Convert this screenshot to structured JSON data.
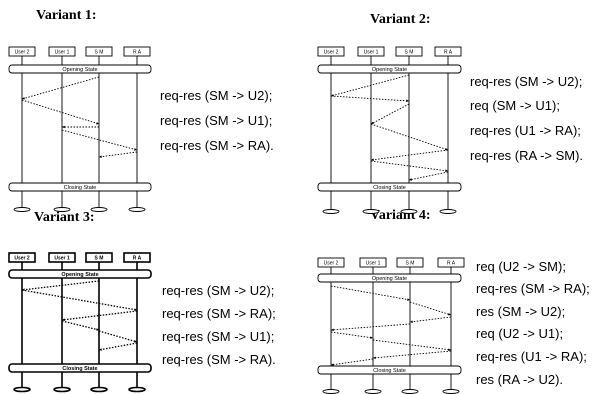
{
  "variants": [
    {
      "title": "Variant 1:",
      "participants": [
        "User 2",
        "User 1",
        "S M",
        "R A"
      ],
      "opening_state": "Opening State",
      "closing_state": "Closing State",
      "steps": [
        "req-res (SM -> U2);",
        "req-res (SM -> U1);",
        "req-res (SM -> RA)."
      ]
    },
    {
      "title": "Variant 2:",
      "participants": [
        "User 2",
        "User 1",
        "S M",
        "R A"
      ],
      "opening_state": "Opening State",
      "closing_state": "Closing State",
      "steps": [
        "req-res (SM -> U2);",
        "req (SM -> U1);",
        "req-res (U1 -> RA);",
        "req-res (RA -> SM)."
      ]
    },
    {
      "title": "Variant 3:",
      "participants": [
        "User 2",
        "User 1",
        "S M",
        "R A"
      ],
      "opening_state": "Opening State",
      "closing_state": "Closing State",
      "steps": [
        "req-res (SM -> U2);",
        "req-res (SM -> RA);",
        "req-res (SM -> U1);",
        "req-res (SM -> RA)."
      ]
    },
    {
      "title": "Variant 4:",
      "participants": [
        "User 2",
        "User 1",
        "S M",
        "R A"
      ],
      "opening_state": "Opening State",
      "closing_state": "Closing State",
      "steps": [
        "req (U2 -> SM);",
        "req-res (SM -> RA);",
        "res (SM -> U2);",
        "req (U2 -> U1);",
        "req-res (U1 -> RA);",
        "res (RA -> U2)."
      ]
    }
  ]
}
